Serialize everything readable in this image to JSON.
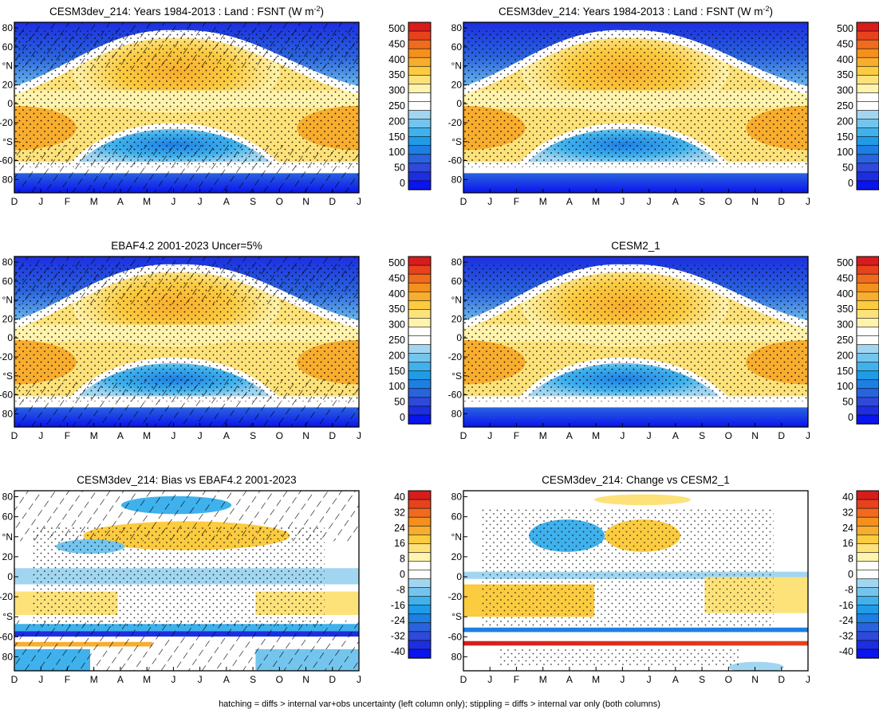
{
  "caption": "hatching = diffs > internal var+obs uncertainty (left column only); stippling = diffs > internal var only (both columns)",
  "chart_data": [
    {
      "type": "heatmap",
      "title": "CESM3dev_214: Years 1984-2013 : Land : FSNT (W m",
      "title_sup": "-2",
      "title_end": ")",
      "x_ticks": [
        "D",
        "J",
        "F",
        "M",
        "A",
        "M",
        "J",
        "J",
        "A",
        "S",
        "O",
        "N",
        "D",
        "J"
      ],
      "y_ticks": [
        "80",
        "60",
        "°N",
        "20",
        "0",
        "-20",
        "°S",
        "-60",
        "80"
      ],
      "ylim": [
        -90,
        90
      ],
      "colorbar_labels": [
        "500",
        "450",
        "400",
        "350",
        "300",
        "250",
        "200",
        "150",
        "100",
        "50",
        "0"
      ],
      "colorbar_colors": [
        "#d71c1c",
        "#e8421d",
        "#f06b1f",
        "#f5901f",
        "#f8ad2e",
        "#fbcb40",
        "#fde27a",
        "#fff3ad",
        "#ffffff",
        "#ffffff",
        "#a2d6f0",
        "#74c5ee",
        "#3fb1ec",
        "#1f9be8",
        "#1e7fe3",
        "#2a63de",
        "#2f49d8",
        "#1c2ee0",
        "#0a14ee"
      ],
      "pattern": "diag-and-dots"
    },
    {
      "type": "heatmap",
      "title": "CESM3dev_214: Years 1984-2013 : Land : FSNT (W m",
      "title_sup": "-2",
      "title_end": ")",
      "x_ticks": [
        "D",
        "J",
        "F",
        "M",
        "A",
        "M",
        "J",
        "J",
        "A",
        "S",
        "O",
        "N",
        "D",
        "J"
      ],
      "y_ticks": [
        "80",
        "60",
        "°N",
        "20",
        "0",
        "-20",
        "°S",
        "-60",
        "80"
      ],
      "ylim": [
        -90,
        90
      ],
      "colorbar_labels": [
        "500",
        "450",
        "400",
        "350",
        "300",
        "250",
        "200",
        "150",
        "100",
        "50",
        "0"
      ],
      "colorbar_colors": [
        "#d71c1c",
        "#e8421d",
        "#f06b1f",
        "#f5901f",
        "#f8ad2e",
        "#fbcb40",
        "#fde27a",
        "#fff3ad",
        "#ffffff",
        "#ffffff",
        "#a2d6f0",
        "#74c5ee",
        "#3fb1ec",
        "#1f9be8",
        "#1e7fe3",
        "#2a63de",
        "#2f49d8",
        "#1c2ee0",
        "#0a14ee"
      ],
      "pattern": "dots"
    },
    {
      "type": "heatmap",
      "title": "EBAF4.2 2001-2023 Uncer=5%",
      "title_sup": "",
      "title_end": "",
      "x_ticks": [
        "D",
        "J",
        "F",
        "M",
        "A",
        "M",
        "J",
        "J",
        "A",
        "S",
        "O",
        "N",
        "D",
        "J"
      ],
      "y_ticks": [
        "80",
        "60",
        "°N",
        "20",
        "0",
        "-20",
        "°S",
        "-60",
        "80"
      ],
      "ylim": [
        -90,
        90
      ],
      "colorbar_labels": [
        "500",
        "450",
        "400",
        "350",
        "300",
        "250",
        "200",
        "150",
        "100",
        "50",
        "0"
      ],
      "colorbar_colors": [
        "#d71c1c",
        "#e8421d",
        "#f06b1f",
        "#f5901f",
        "#f8ad2e",
        "#fbcb40",
        "#fde27a",
        "#fff3ad",
        "#ffffff",
        "#ffffff",
        "#a2d6f0",
        "#74c5ee",
        "#3fb1ec",
        "#1f9be8",
        "#1e7fe3",
        "#2a63de",
        "#2f49d8",
        "#1c2ee0",
        "#0a14ee"
      ],
      "pattern": "diag-and-dots"
    },
    {
      "type": "heatmap",
      "title": "CESM2_1",
      "title_sup": "",
      "title_end": "",
      "x_ticks": [
        "D",
        "J",
        "F",
        "M",
        "A",
        "M",
        "J",
        "J",
        "A",
        "S",
        "O",
        "N",
        "D",
        "J"
      ],
      "y_ticks": [
        "80",
        "60",
        "°N",
        "20",
        "0",
        "-20",
        "°S",
        "-60",
        "80"
      ],
      "ylim": [
        -90,
        90
      ],
      "colorbar_labels": [
        "500",
        "450",
        "400",
        "350",
        "300",
        "250",
        "200",
        "150",
        "100",
        "50",
        "0"
      ],
      "colorbar_colors": [
        "#d71c1c",
        "#e8421d",
        "#f06b1f",
        "#f5901f",
        "#f8ad2e",
        "#fbcb40",
        "#fde27a",
        "#fff3ad",
        "#ffffff",
        "#ffffff",
        "#a2d6f0",
        "#74c5ee",
        "#3fb1ec",
        "#1f9be8",
        "#1e7fe3",
        "#2a63de",
        "#2f49d8",
        "#1c2ee0",
        "#0a14ee"
      ],
      "pattern": "dots"
    },
    {
      "type": "heatmap",
      "title": "CESM3dev_214: Bias vs EBAF4.2 2001-2023",
      "title_sup": "",
      "title_end": "",
      "x_ticks": [
        "D",
        "J",
        "F",
        "M",
        "A",
        "M",
        "J",
        "J",
        "A",
        "S",
        "O",
        "N",
        "D",
        "J"
      ],
      "y_ticks": [
        "80",
        "60",
        "°N",
        "20",
        "0",
        "-20",
        "°S",
        "-60",
        "80"
      ],
      "ylim": [
        -90,
        90
      ],
      "colorbar_labels": [
        "40",
        "32",
        "24",
        "16",
        "8",
        "0",
        "-8",
        "-16",
        "-24",
        "-32",
        "-40"
      ],
      "colorbar_colors": [
        "#d71c1c",
        "#e8421d",
        "#f06b1f",
        "#f5901f",
        "#f8ad2e",
        "#fbcb40",
        "#fde27a",
        "#fff3ad",
        "#ffffff",
        "#ffffff",
        "#a2d6f0",
        "#74c5ee",
        "#3fb1ec",
        "#1f9be8",
        "#1e7fe3",
        "#2a63de",
        "#2f49d8",
        "#1c2ee0",
        "#0a14ee"
      ],
      "pattern": "diag-and-dots"
    },
    {
      "type": "heatmap",
      "title": "CESM3dev_214: Change vs CESM2_1",
      "title_sup": "",
      "title_end": "",
      "x_ticks": [
        "D",
        "J",
        "F",
        "M",
        "A",
        "M",
        "J",
        "J",
        "A",
        "S",
        "O",
        "N",
        "D",
        "J"
      ],
      "y_ticks": [
        "80",
        "60",
        "°N",
        "20",
        "0",
        "-20",
        "°S",
        "-60",
        "80"
      ],
      "ylim": [
        -90,
        90
      ],
      "colorbar_labels": [
        "40",
        "32",
        "24",
        "16",
        "8",
        "0",
        "-8",
        "-16",
        "-24",
        "-32",
        "-40"
      ],
      "colorbar_colors": [
        "#d71c1c",
        "#e8421d",
        "#f06b1f",
        "#f5901f",
        "#f8ad2e",
        "#fbcb40",
        "#fde27a",
        "#fff3ad",
        "#ffffff",
        "#ffffff",
        "#a2d6f0",
        "#74c5ee",
        "#3fb1ec",
        "#1f9be8",
        "#1e7fe3",
        "#2a63de",
        "#2f49d8",
        "#1c2ee0",
        "#0a14ee"
      ],
      "pattern": "dots"
    }
  ]
}
